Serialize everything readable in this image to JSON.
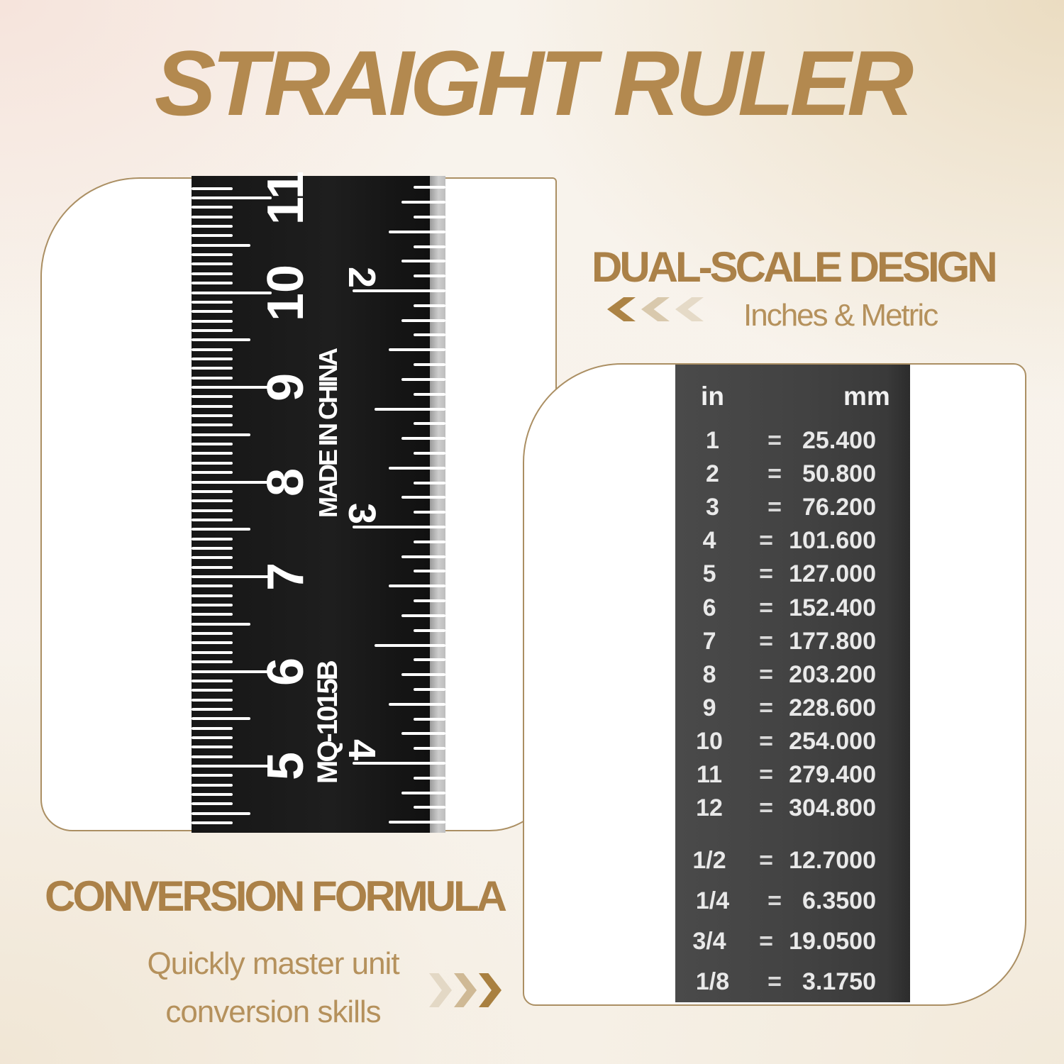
{
  "title": "STRAIGHT RULER",
  "dual_scale": {
    "heading": "DUAL-SCALE DESIGN",
    "subheading": "Inches & Metric"
  },
  "conversion_formula": {
    "heading": "CONVERSION FORMULA",
    "line1": "Quickly master unit",
    "line2": "conversion skills"
  },
  "ruler": {
    "made_in": "MADE IN CHINA",
    "model": "MQ-1015B",
    "cm_numbers": [
      "11",
      "10",
      "9",
      "8",
      "7",
      "6",
      "5"
    ],
    "inch_numbers": [
      "2",
      "3",
      "4"
    ]
  },
  "conversion_table": {
    "header_in": "in",
    "header_mm": "mm",
    "equals": "=",
    "rows": [
      [
        "1",
        "25.400"
      ],
      [
        "2",
        "50.800"
      ],
      [
        "3",
        "76.200"
      ],
      [
        "4",
        "101.600"
      ],
      [
        "5",
        "127.000"
      ],
      [
        "6",
        "152.400"
      ],
      [
        "7",
        "177.800"
      ],
      [
        "8",
        "203.200"
      ],
      [
        "9",
        "228.600"
      ],
      [
        "10",
        "254.000"
      ],
      [
        "11",
        "279.400"
      ],
      [
        "12",
        "304.800"
      ]
    ],
    "fraction_rows": [
      [
        "1/2",
        "12.7000"
      ],
      [
        "1/4",
        "6.3500"
      ],
      [
        "3/4",
        "19.0500"
      ],
      [
        "1/8",
        "3.1750"
      ]
    ]
  },
  "colors": {
    "accent": "#ab8148",
    "accent_light": "#b5915c",
    "card_border": "#ab8f63",
    "ruler_bg": "#1a1a1a",
    "table_bg": "#424242",
    "tick": "#ffffff",
    "table_text": "#e9e9e9",
    "chevrons_left": [
      "#ac8345",
      "#d9c9ad",
      "#e5dac7"
    ],
    "chevrons_right": [
      "#e3d8c5",
      "#cfb995",
      "#a98040"
    ]
  }
}
